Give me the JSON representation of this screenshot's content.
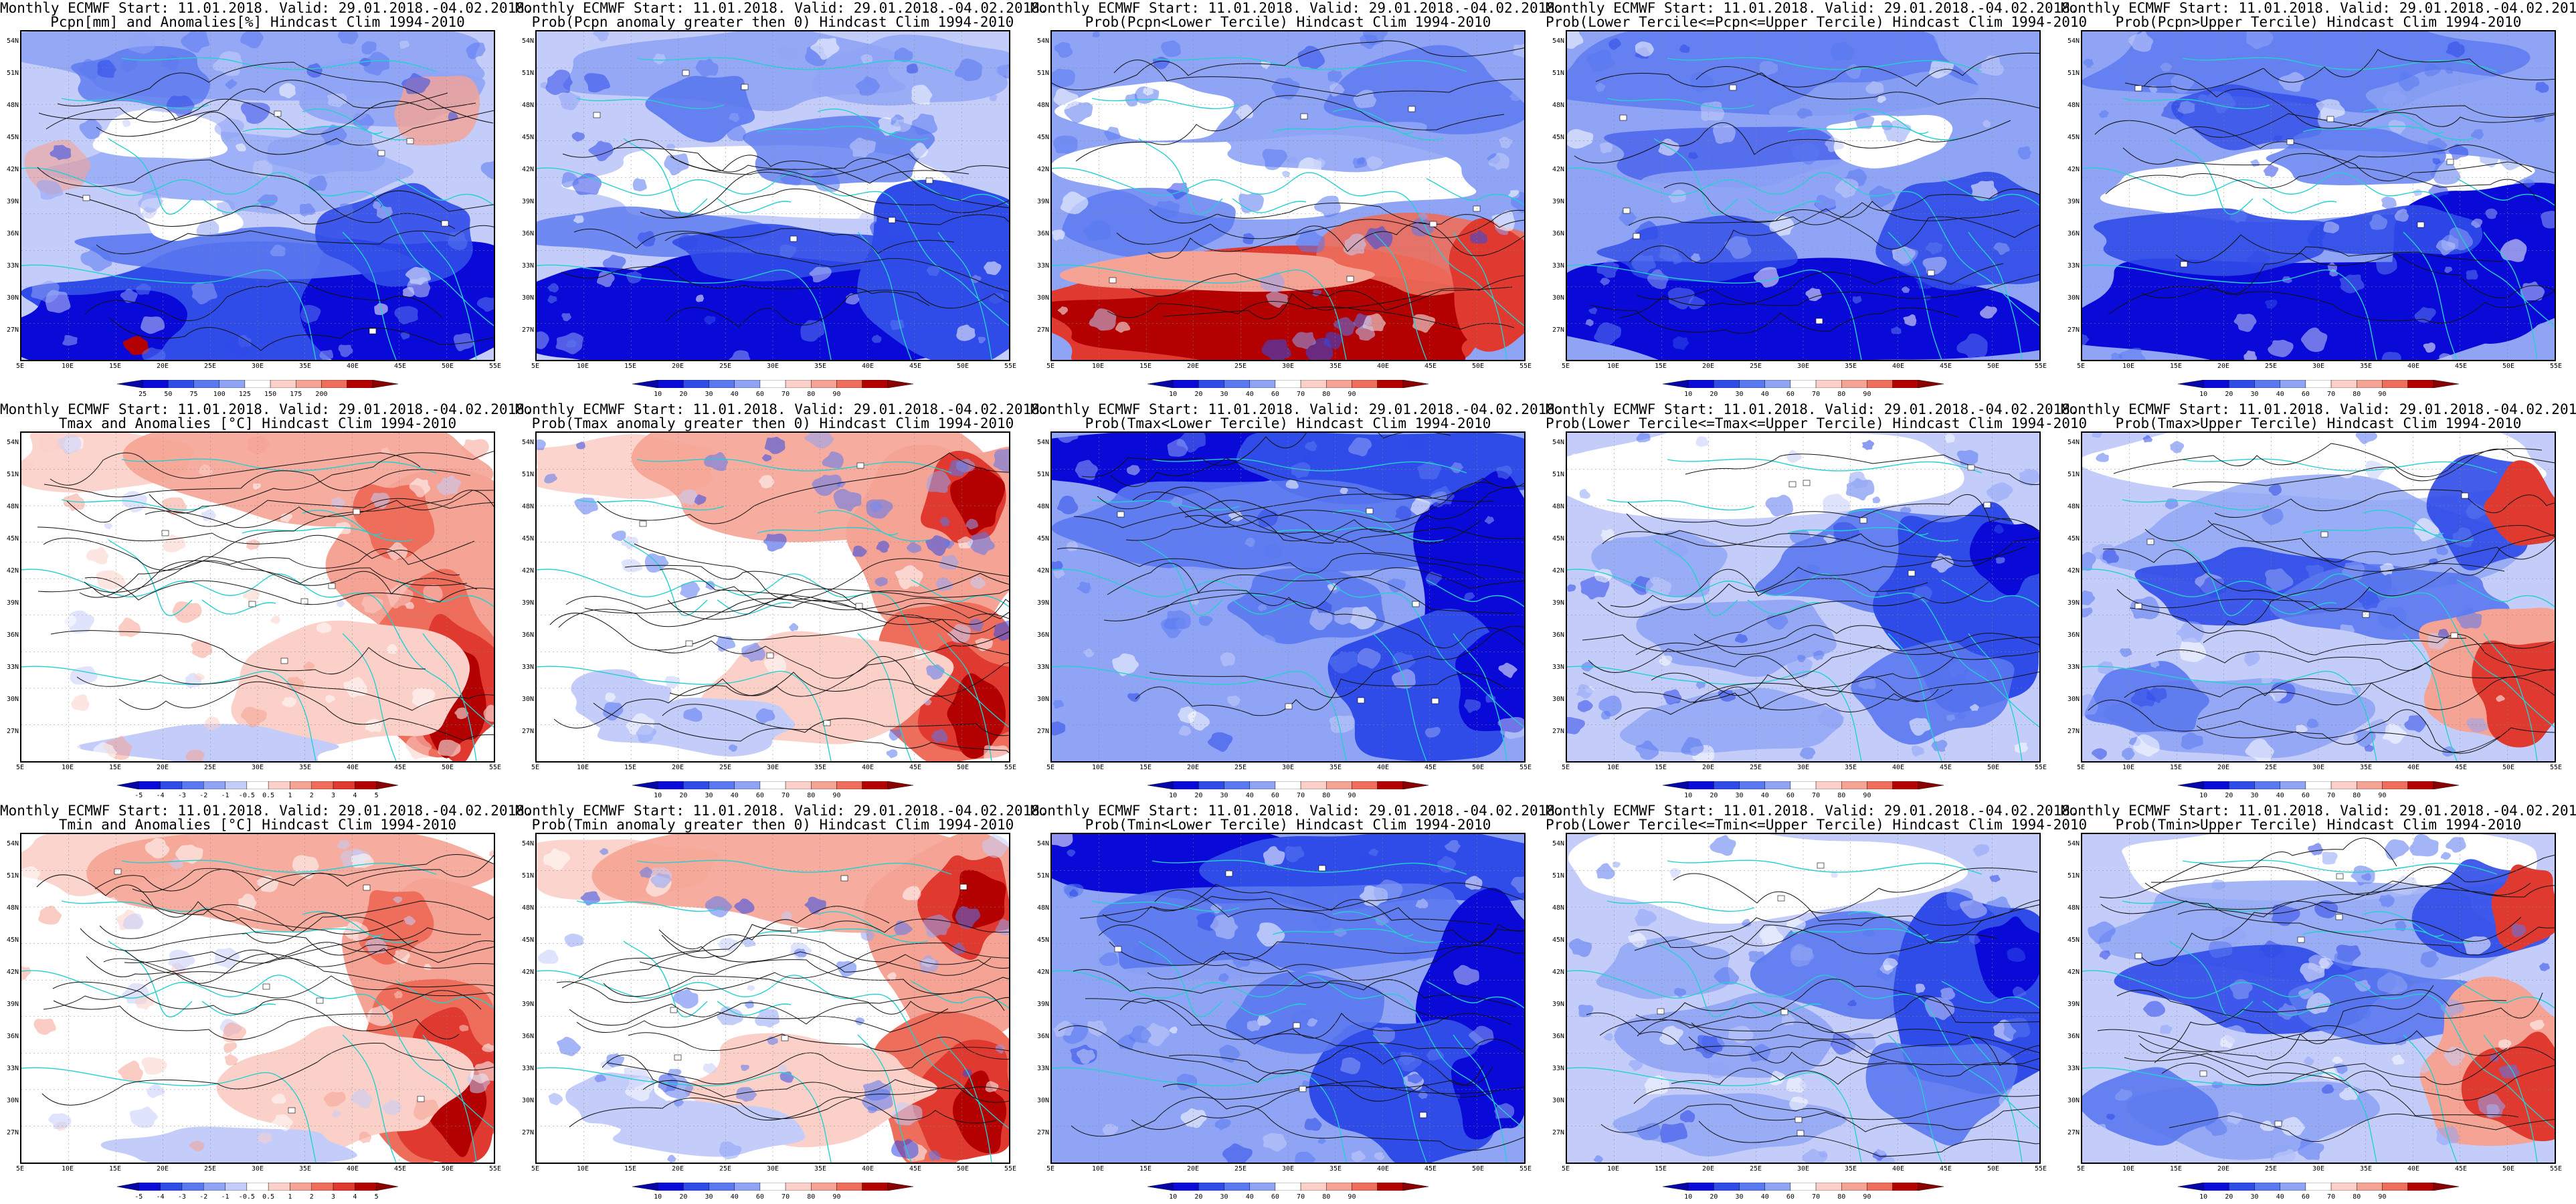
{
  "header": "Monthly ECMWF Start: 11.01.2018. Valid: 29.01.2018.-04.02.2018.",
  "lat_ticks": [
    "54N",
    "51N",
    "48N",
    "45N",
    "42N",
    "39N",
    "36N",
    "33N",
    "30N",
    "27N"
  ],
  "lon_ticks": [
    "5E",
    "10E",
    "15E",
    "20E",
    "25E",
    "30E",
    "35E",
    "40E",
    "45E",
    "50E",
    "55E"
  ],
  "prob_ticks": [
    "10",
    "20",
    "30",
    "40",
    "60",
    "70",
    "80",
    "90"
  ],
  "colors": {
    "blue": [
      "#0a0ad8",
      "#2f4be8",
      "#5a78f0",
      "#8fa4f5",
      "#c4cdfa"
    ],
    "red": [
      "#fbd0c8",
      "#f5a394",
      "#ee6e5b",
      "#e03a30",
      "#b30000"
    ],
    "coast": "#24d0d0"
  },
  "rows": [
    {
      "param": "Pcpn",
      "panels": [
        {
          "title": "Pcpn[mm] and Anomalies[%] Hindcast Clim 1994-2010",
          "scheme": "pcpn-anom",
          "ticks": [
            "25",
            "50",
            "75",
            "100",
            "125",
            "150",
            "175",
            "200"
          ]
        },
        {
          "title": "Prob(Pcpn anomaly greater then 0) Hindcast Clim 1994-2010",
          "scheme": "pcpn-prob0",
          "ticks": [
            "10",
            "20",
            "30",
            "40",
            "60",
            "70",
            "80",
            "90"
          ]
        },
        {
          "title": "Prob(Pcpn<Lower Tercile) Hindcast Clim 1994-2010",
          "scheme": "pcpn-lower",
          "ticks": [
            "10",
            "20",
            "30",
            "40",
            "60",
            "70",
            "80",
            "90"
          ]
        },
        {
          "title": "Prob(Lower Tercile<=Pcpn<=Upper Tercile) Hindcast Clim 1994-2010",
          "scheme": "pcpn-middle",
          "ticks": [
            "10",
            "20",
            "30",
            "40",
            "60",
            "70",
            "80",
            "90"
          ]
        },
        {
          "title": "Prob(Pcpn>Upper Tercile) Hindcast Clim 1994-2010",
          "scheme": "pcpn-upper",
          "ticks": [
            "10",
            "20",
            "30",
            "40",
            "60",
            "70",
            "80",
            "90"
          ]
        }
      ]
    },
    {
      "param": "Tmax",
      "panels": [
        {
          "title": "Tmax and Anomalies [°C] Hindcast Clim 1994-2010",
          "scheme": "t-anom",
          "ticks": [
            "-5",
            "-4",
            "-3",
            "-2",
            "-1",
            "-0.5",
            "0.5",
            "1",
            "2",
            "3",
            "4",
            "5"
          ]
        },
        {
          "title": "Prob(Tmax anomaly greater then 0) Hindcast Clim 1994-2010",
          "scheme": "t-prob0",
          "ticks": [
            "10",
            "20",
            "30",
            "40",
            "60",
            "70",
            "80",
            "90"
          ]
        },
        {
          "title": "Prob(Tmax<Lower Tercile) Hindcast Clim 1994-2010",
          "scheme": "t-lower",
          "ticks": [
            "10",
            "20",
            "30",
            "40",
            "60",
            "70",
            "80",
            "90"
          ]
        },
        {
          "title": "Prob(Lower Tercile<=Tmax<=Upper Tercile) Hindcast Clim 1994-2010",
          "scheme": "t-middle",
          "ticks": [
            "10",
            "20",
            "30",
            "40",
            "60",
            "70",
            "80",
            "90"
          ]
        },
        {
          "title": "Prob(Tmax>Upper Tercile) Hindcast Clim 1994-2010",
          "scheme": "t-upper",
          "ticks": [
            "10",
            "20",
            "30",
            "40",
            "60",
            "70",
            "80",
            "90"
          ]
        }
      ]
    },
    {
      "param": "Tmin",
      "panels": [
        {
          "title": "Tmin and Anomalies [°C] Hindcast Clim 1994-2010",
          "scheme": "t-anom",
          "ticks": [
            "-5",
            "-4",
            "-3",
            "-2",
            "-1",
            "-0.5",
            "0.5",
            "1",
            "2",
            "3",
            "4",
            "5"
          ]
        },
        {
          "title": "Prob(Tmin anomaly greater then 0) Hindcast Clim 1994-2010",
          "scheme": "t-prob0",
          "ticks": [
            "10",
            "20",
            "30",
            "40",
            "60",
            "70",
            "80",
            "90"
          ]
        },
        {
          "title": "Prob(Tmin<Lower Tercile) Hindcast Clim 1994-2010",
          "scheme": "t-lower",
          "ticks": [
            "10",
            "20",
            "30",
            "40",
            "60",
            "70",
            "80",
            "90"
          ]
        },
        {
          "title": "Prob(Lower Tercile<=Tmin<=Upper Tercile) Hindcast Clim 1994-2010",
          "scheme": "t-middle",
          "ticks": [
            "10",
            "20",
            "30",
            "40",
            "60",
            "70",
            "80",
            "90"
          ]
        },
        {
          "title": "Prob(Tmin>Upper Tercile) Hindcast Clim 1994-2010",
          "scheme": "t-upper",
          "ticks": [
            "10",
            "20",
            "30",
            "40",
            "60",
            "70",
            "80",
            "90"
          ]
        }
      ]
    }
  ]
}
